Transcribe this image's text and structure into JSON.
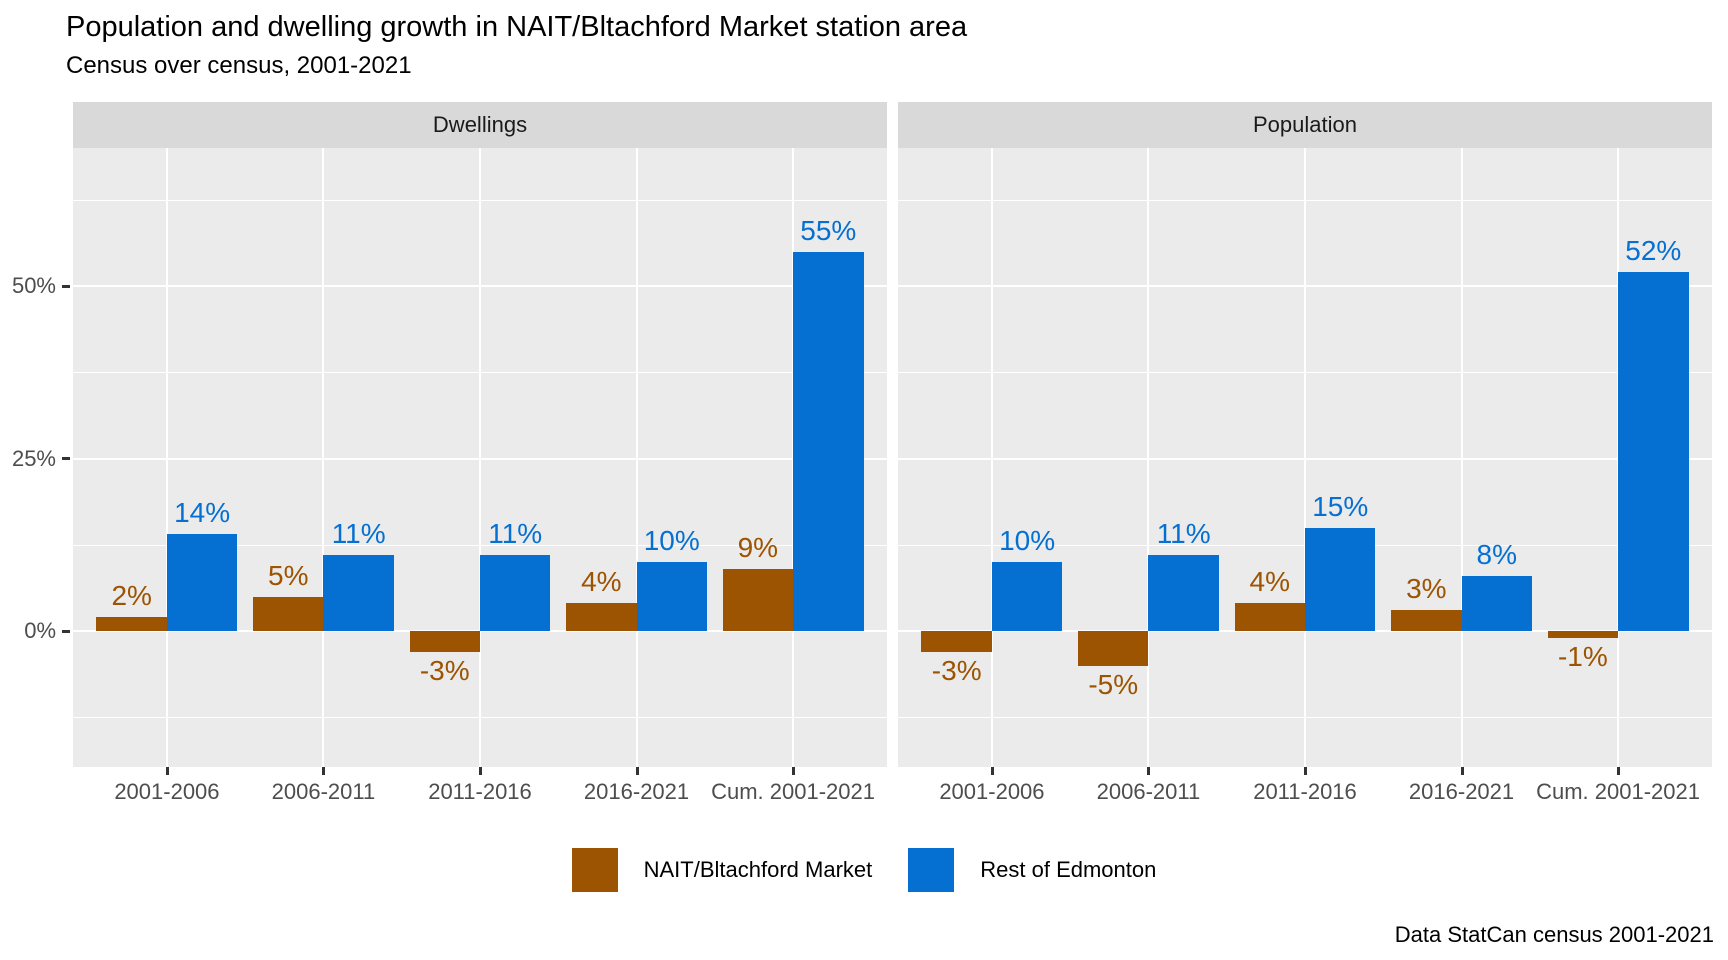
{
  "title": "Population and dwelling growth in NAIT/Bltachford Market station area",
  "subtitle": "Census over census, 2001-2021",
  "caption": "Data StatCan census 2001-2021",
  "colors": {
    "nait": "#9C5402",
    "rest": "#0570D2",
    "panel_bg": "#EBEBEB",
    "strip_bg": "#D9D9D9",
    "grid": "#FFFFFF",
    "axis_text": "#4D4D4D",
    "tick": "#333333"
  },
  "legend": {
    "items": [
      {
        "label": "NAIT/Bltachford Market",
        "color_key": "nait"
      },
      {
        "label": "Rest of Edmonton",
        "color_key": "rest"
      }
    ]
  },
  "chart_data": {
    "type": "bar",
    "title": "Population and dwelling growth in NAIT/Bltachford Market station area",
    "subtitle": "Census over census, 2001-2021",
    "caption": "Data StatCan census 2001-2021",
    "grid": true,
    "legend_position": "bottom",
    "categories": [
      "2001-2006",
      "2006-2011",
      "2011-2016",
      "2016-2021",
      "Cum. 2001-2021"
    ],
    "y_axis": {
      "tick_values": [
        0,
        25,
        50
      ],
      "tick_labels": [
        "0%",
        "25%",
        "50%"
      ],
      "minor_tick_values": [
        -12.5,
        12.5,
        37.5,
        62.5
      ],
      "ylim": [
        -19.7,
        70
      ]
    },
    "facets": [
      {
        "label": "Dwellings",
        "series": [
          {
            "name": "NAIT/Bltachford Market",
            "color_key": "nait",
            "values": [
              2,
              5,
              -3,
              4,
              9
            ],
            "labels": [
              "2%",
              "5%",
              "-3%",
              "4%",
              "9%"
            ]
          },
          {
            "name": "Rest of Edmonton",
            "color_key": "rest",
            "values": [
              14,
              11,
              11,
              10,
              55
            ],
            "labels": [
              "14%",
              "11%",
              "11%",
              "10%",
              "55%"
            ]
          }
        ]
      },
      {
        "label": "Population",
        "series": [
          {
            "name": "NAIT/Bltachford Market",
            "color_key": "nait",
            "values": [
              -3,
              -5,
              4,
              3,
              -1
            ],
            "labels": [
              "-3%",
              "-5%",
              "4%",
              "3%",
              "-1%"
            ]
          },
          {
            "name": "Rest of Edmonton",
            "color_key": "rest",
            "values": [
              10,
              11,
              15,
              8,
              52
            ],
            "labels": [
              "10%",
              "11%",
              "15%",
              "8%",
              "52%"
            ]
          }
        ]
      }
    ]
  }
}
